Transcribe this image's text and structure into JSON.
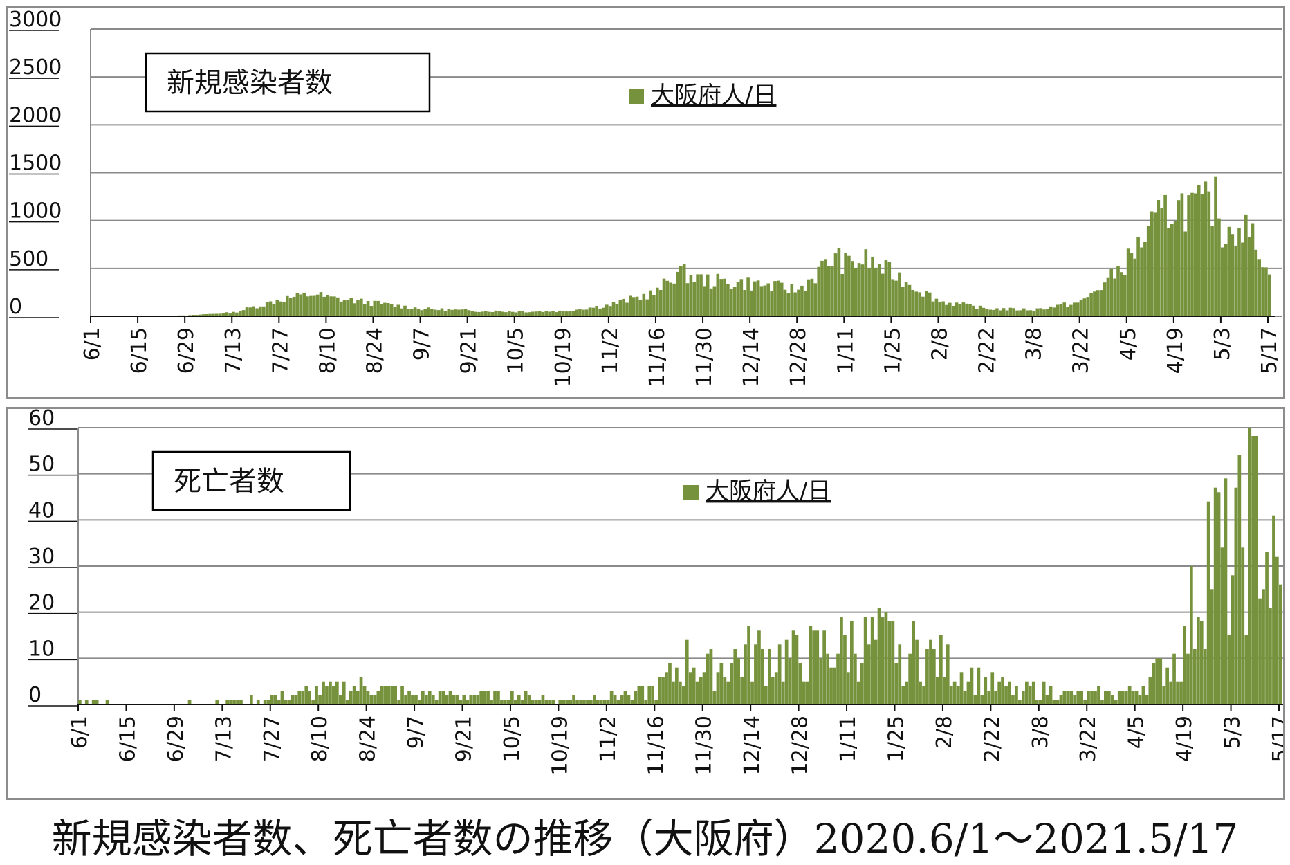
{
  "colors": {
    "bar": "#76923c",
    "grid": "#8a8a8a",
    "axis": "#111111",
    "frame": "#8c8c8c"
  },
  "chart_data": [
    {
      "type": "bar",
      "title": "新規感染者数",
      "legend": {
        "label": "大阪府人/日",
        "position": "top-center"
      },
      "xlabel": "",
      "ylabel": "",
      "ylim": [
        0,
        3000
      ],
      "yticks": [
        "3000",
        "2500",
        "2000",
        "1500",
        "1000",
        "500",
        "0"
      ],
      "xticks": [
        "6/1",
        "6/15",
        "6/29",
        "7/13",
        "7/27",
        "8/10",
        "8/24",
        "9/7",
        "9/21",
        "10/5",
        "10/19",
        "11/2",
        "11/16",
        "11/30",
        "12/14",
        "12/28",
        "1/11",
        "1/25",
        "2/8",
        "2/22",
        "3/8",
        "3/22",
        "4/5",
        "4/19",
        "5/3",
        "5/17"
      ],
      "x_start": "2020-06-01",
      "series": [
        {
          "name": "大阪府人/日",
          "segments": [
            [
              "6/1",
              2
            ],
            [
              "6/29",
              8
            ],
            [
              "7/13",
              40
            ],
            [
              "7/27",
              180
            ],
            [
              "8/6",
              240
            ],
            [
              "8/10",
              200
            ],
            [
              "8/24",
              140
            ],
            [
              "9/7",
              80
            ],
            [
              "9/21",
              60
            ],
            [
              "10/5",
              50
            ],
            [
              "10/19",
              55
            ],
            [
              "11/2",
              120
            ],
            [
              "11/16",
              260
            ],
            [
              "11/22",
              480
            ],
            [
              "11/30",
              380
            ],
            [
              "12/14",
              350
            ],
            [
              "12/28",
              280
            ],
            [
              "1/8",
              640
            ],
            [
              "1/11",
              560
            ],
            [
              "1/17",
              600
            ],
            [
              "1/25",
              460
            ],
            [
              "2/8",
              160
            ],
            [
              "2/22",
              80
            ],
            [
              "3/8",
              70
            ],
            [
              "3/22",
              150
            ],
            [
              "3/30",
              380
            ],
            [
              "4/5",
              600
            ],
            [
              "4/12",
              950
            ],
            [
              "4/19",
              1200
            ],
            [
              "4/26",
              1150
            ],
            [
              "5/1",
              1230
            ],
            [
              "5/3",
              900
            ],
            [
              "5/8",
              1000
            ],
            [
              "5/14",
              760
            ],
            [
              "5/17",
              400
            ]
          ]
        }
      ]
    },
    {
      "type": "bar",
      "title": "死亡者数",
      "legend": {
        "label": "大阪府人/日",
        "position": "top-center"
      },
      "xlabel": "",
      "ylabel": "",
      "ylim": [
        0,
        60
      ],
      "yticks": [
        "60",
        "50",
        "40",
        "30",
        "20",
        "10",
        "0"
      ],
      "xticks": [
        "6/1",
        "6/15",
        "6/29",
        "7/13",
        "7/27",
        "8/10",
        "8/24",
        "9/7",
        "9/21",
        "10/5",
        "10/19",
        "11/2",
        "11/16",
        "11/30",
        "12/14",
        "12/28",
        "1/11",
        "1/25",
        "2/8",
        "2/22",
        "3/8",
        "3/22",
        "4/5",
        "4/19",
        "5/3",
        "5/17"
      ],
      "x_start": "2020-06-01",
      "series": [
        {
          "name": "大阪府人/日",
          "segments": [
            [
              "6/1",
              1
            ],
            [
              "6/15",
              0
            ],
            [
              "7/24",
              1
            ],
            [
              "8/10",
              3
            ],
            [
              "8/24",
              4
            ],
            [
              "9/7",
              2
            ],
            [
              "9/21",
              2
            ],
            [
              "10/5",
              2
            ],
            [
              "10/19",
              1
            ],
            [
              "11/2",
              2
            ],
            [
              "11/16",
              3
            ],
            [
              "11/26",
              10
            ],
            [
              "11/30",
              7
            ],
            [
              "12/14",
              11
            ],
            [
              "12/28",
              10
            ],
            [
              "1/11",
              13
            ],
            [
              "1/25",
              13
            ],
            [
              "2/8",
              9
            ],
            [
              "2/22",
              4
            ],
            [
              "3/8",
              3
            ],
            [
              "3/22",
              2
            ],
            [
              "4/5",
              3
            ],
            [
              "4/15",
              9
            ],
            [
              "4/19",
              12
            ],
            [
              "4/26",
              35
            ],
            [
              "5/3",
              28
            ],
            [
              "5/10",
              45
            ],
            [
              "5/13",
              32
            ],
            [
              "5/17",
              22
            ]
          ]
        }
      ]
    }
  ],
  "caption": {
    "text": "新規感染者数、死亡者数の推移（大阪府）",
    "range": "2020.6/1〜2021.5/17"
  }
}
